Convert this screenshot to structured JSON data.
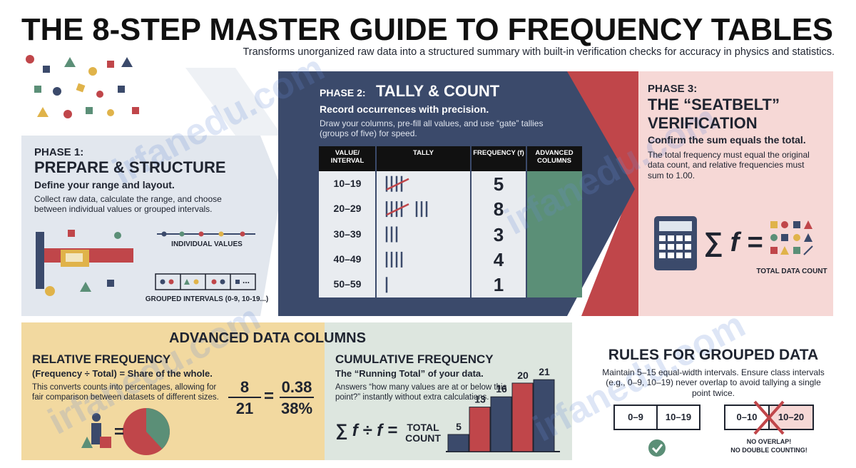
{
  "watermark": "irfanedu.com",
  "header": {
    "title": "THE 8-STEP MASTER GUIDE TO FREQUENCY TABLES",
    "subtitle": "Transforms unorganized raw data into a structured summary with built-in verification checks for accuracy in physics and statistics."
  },
  "phase1": {
    "label": "PHASE 1:",
    "title": "PREPARE & STRUCTURE",
    "lead": "Define your range and layout.",
    "text": "Collect raw data, calculate the range, and choose between individual values or grouped intervals.",
    "individual_label": "INDIVIDUAL VALUES",
    "grouped_more": "...",
    "grouped_label": "GROUPED INTERVALS (0-9, 10-19...)"
  },
  "phase2": {
    "label": "PHASE 2:",
    "title": "TALLY & COUNT",
    "lead": "Record occurrences with precision.",
    "text": "Draw your columns, pre-fill all values, and use “gate” tallies (groups of five) for speed.",
    "table": {
      "headers": [
        "VALUE/ INTERVAL",
        "TALLY",
        "FREQUENCY (f)",
        "ADVANCED COLUMNS"
      ],
      "rows": [
        {
          "interval": "10–19",
          "frequency": 5
        },
        {
          "interval": "20–29",
          "frequency": 8
        },
        {
          "interval": "30–39",
          "frequency": 3
        },
        {
          "interval": "40–49",
          "frequency": 4
        },
        {
          "interval": "50–59",
          "frequency": 1
        }
      ]
    }
  },
  "phase3": {
    "label": "PHASE 3:",
    "title": "THE “SEATBELT” VERIFICATION",
    "lead": "Confirm the sum equals the total.",
    "text": "The total frequency must equal the original data count, and relative frequencies must sum to 1.00.",
    "formula": "∑ f =",
    "caption": "TOTAL DATA COUNT"
  },
  "advanced": {
    "title": "ADVANCED DATA COLUMNS",
    "relative": {
      "title": "RELATIVE FREQUENCY",
      "lead": "(Frequency ÷ Total) = Share of the whole.",
      "text": "This converts counts into percentages, allowing for fair comparison between datasets of different sizes.",
      "numerator": 8,
      "denominator": 21,
      "decimal": 0.38,
      "percent": "38%",
      "equals": "="
    },
    "cumulative": {
      "title": "CUMULATIVE FREQUENCY",
      "lead": "The “Running Total” of your data.",
      "text": "Answers “how many values are at or below this point?” instantly without extra calculations.",
      "formula": "∑ f ÷ f =",
      "formula_result": "TOTAL COUNT",
      "chart": {
        "type": "bar",
        "values": [
          5,
          13,
          16,
          20,
          21
        ],
        "colors": [
          "#3b4a6b",
          "#c0464a",
          "#3b4a6b",
          "#c0464a",
          "#3b4a6b"
        ]
      }
    }
  },
  "rules": {
    "title": "RULES FOR GROUPED DATA",
    "text": "Maintain 5–15 equal-width intervals. Ensure class intervals (e.g., 0–9, 10–19) never overlap to avoid tallying a single point twice.",
    "good": [
      "0–9",
      "10–19"
    ],
    "bad": [
      "0–10",
      "10–20"
    ],
    "bad_caption": [
      "NO OVERLAP!",
      "NO DOUBLE COUNTING!"
    ]
  }
}
